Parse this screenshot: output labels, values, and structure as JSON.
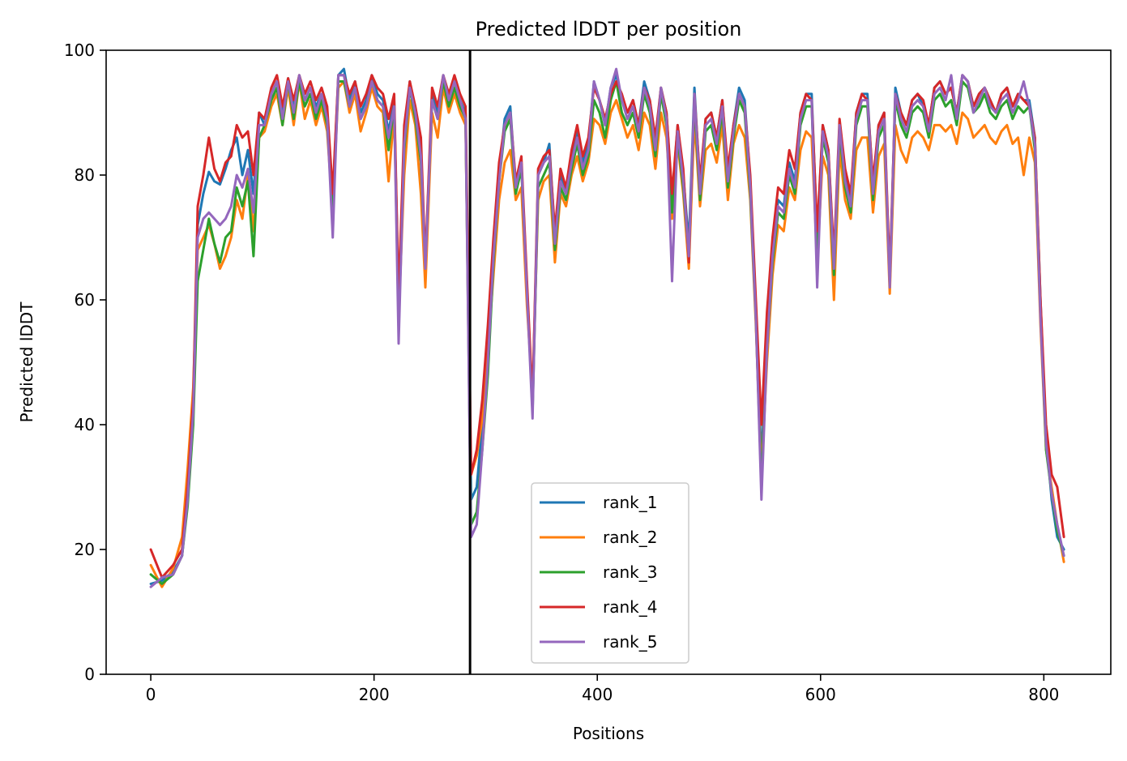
{
  "chart_data": {
    "type": "line",
    "title": "Predicted lDDT per position",
    "xlabel": "Positions",
    "ylabel": "Predicted lDDT",
    "xlim": [
      -40,
      860
    ],
    "ylim": [
      0,
      100
    ],
    "xticks": [
      0,
      200,
      400,
      600,
      800
    ],
    "yticks": [
      0,
      20,
      40,
      60,
      80,
      100
    ],
    "grid": false,
    "legend_position": "lower-center",
    "chain_break": 286,
    "breakpoints": [
      0,
      10,
      20,
      28,
      33,
      38,
      42,
      47,
      52,
      57,
      62,
      67,
      72,
      77,
      82,
      87,
      92,
      97,
      102,
      108,
      113,
      118,
      123,
      128,
      133,
      138,
      143,
      148,
      153,
      158,
      163,
      168,
      173,
      178,
      183,
      188,
      193,
      198,
      203,
      208,
      213,
      218,
      222,
      227,
      232,
      237,
      242,
      246,
      252,
      257,
      262,
      267,
      272,
      277,
      282,
      286,
      287,
      292,
      297,
      302,
      307,
      312,
      317,
      322,
      327,
      332,
      337,
      342,
      347,
      352,
      357,
      362,
      367,
      372,
      377,
      382,
      387,
      392,
      397,
      402,
      407,
      412,
      417,
      422,
      427,
      432,
      437,
      442,
      447,
      452,
      457,
      462,
      467,
      472,
      477,
      482,
      487,
      492,
      497,
      502,
      507,
      512,
      517,
      522,
      527,
      532,
      537,
      542,
      547,
      552,
      557,
      562,
      567,
      572,
      577,
      582,
      587,
      592,
      597,
      602,
      607,
      612,
      617,
      622,
      627,
      632,
      637,
      642,
      647,
      652,
      657,
      662,
      667,
      672,
      677,
      682,
      687,
      692,
      697,
      702,
      707,
      712,
      717,
      722,
      727,
      732,
      737,
      742,
      747,
      752,
      757,
      762,
      767,
      772,
      777,
      782,
      787,
      792,
      797,
      802,
      807,
      812,
      818
    ],
    "series": [
      {
        "name": "rank_1",
        "color": "#1f77b4",
        "values": [
          14.5,
          15,
          16.5,
          19,
          28,
          42,
          72,
          77,
          80.5,
          79,
          78.5,
          81,
          84,
          86,
          80,
          84,
          77,
          90,
          88,
          93,
          95,
          90,
          95.5,
          91,
          96,
          92,
          94,
          91,
          93,
          90,
          76,
          96,
          97,
          92,
          95,
          90,
          92,
          96,
          93,
          92,
          87,
          92,
          58,
          86,
          95,
          90,
          84,
          64,
          93,
          90,
          96,
          92,
          95,
          92,
          90,
          40,
          28,
          30,
          40,
          54,
          68,
          80,
          89,
          91,
          78,
          82,
          62,
          43,
          80,
          82,
          85,
          70,
          80,
          77,
          83,
          87,
          82,
          85,
          95,
          92,
          88,
          94,
          96,
          92,
          90,
          92,
          88,
          95,
          92,
          85,
          94,
          90,
          76,
          88,
          80,
          69,
          94,
          78,
          89,
          90,
          86,
          92,
          80,
          88,
          94,
          92,
          79,
          58,
          34,
          54,
          68,
          76,
          75,
          82,
          79,
          90,
          93,
          93,
          70,
          88,
          84,
          66,
          88,
          80,
          76,
          90,
          93,
          93,
          78,
          88,
          90,
          62,
          94,
          90,
          88,
          92,
          93,
          91,
          88,
          94,
          95,
          93,
          94,
          90,
          96,
          95,
          91,
          93,
          94,
          92,
          90,
          93,
          94,
          91,
          93,
          92,
          92,
          86,
          60,
          38,
          28,
          22,
          20
        ],
        "_": ""
      },
      {
        "name": "rank_2",
        "color": "#ff7f0e",
        "values": [
          17.5,
          14,
          17,
          22,
          33,
          46,
          68,
          70,
          72,
          69,
          65,
          67,
          70,
          76,
          73,
          80,
          71,
          86,
          87,
          91,
          93,
          88,
          94,
          88,
          95,
          89,
          92,
          88,
          91,
          87,
          74,
          94,
          95,
          90,
          93,
          87,
          90,
          94,
          91,
          90,
          79,
          90,
          57,
          80,
          92,
          88,
          77,
          62,
          90,
          86,
          94,
          90,
          93,
          90,
          88,
          38,
          32,
          35,
          41,
          52,
          64,
          76,
          82,
          84,
          76,
          78,
          59,
          45,
          76,
          79,
          80,
          66,
          77,
          75,
          80,
          83,
          79,
          82,
          89,
          88,
          85,
          90,
          92,
          89,
          86,
          88,
          84,
          90,
          88,
          81,
          90,
          86,
          73,
          85,
          77,
          65,
          89,
          75,
          84,
          85,
          82,
          88,
          76,
          85,
          88,
          86,
          76,
          56,
          32,
          50,
          64,
          72,
          71,
          78,
          76,
          84,
          87,
          86,
          66,
          83,
          80,
          60,
          84,
          76,
          73,
          84,
          86,
          86,
          74,
          83,
          85,
          61,
          88,
          84,
          82,
          86,
          87,
          86,
          84,
          88,
          88,
          87,
          88,
          85,
          90,
          89,
          86,
          87,
          88,
          86,
          85,
          87,
          88,
          85,
          86,
          80,
          86,
          82,
          56,
          36,
          30,
          24,
          18
        ],
        "_": ""
      },
      {
        "name": "rank_3",
        "color": "#2ca02c",
        "values": [
          16,
          14.5,
          16,
          19,
          27,
          40,
          63,
          68,
          73,
          69,
          66,
          70,
          71,
          78,
          75,
          79,
          67,
          86,
          88,
          92,
          94,
          88,
          95,
          89,
          95,
          91,
          93,
          89,
          92,
          88,
          74,
          95,
          95,
          91,
          94,
          89,
          91,
          95,
          92,
          91,
          84,
          91,
          60,
          84,
          94,
          89,
          82,
          66,
          92,
          89,
          95,
          91,
          94,
          91,
          89,
          34,
          24,
          26,
          36,
          48,
          66,
          79,
          87,
          89,
          77,
          81,
          62,
          42,
          78,
          80,
          82,
          68,
          78,
          76,
          81,
          85,
          80,
          83,
          92,
          90,
          86,
          92,
          95,
          90,
          88,
          90,
          86,
          93,
          90,
          83,
          93,
          88,
          74,
          86,
          78,
          67,
          92,
          76,
          87,
          88,
          84,
          90,
          78,
          86,
          92,
          90,
          77,
          57,
          30,
          52,
          66,
          74,
          73,
          80,
          77,
          88,
          91,
          91,
          68,
          86,
          82,
          64,
          87,
          78,
          74,
          88,
          91,
          91,
          76,
          86,
          88,
          63,
          92,
          88,
          86,
          90,
          91,
          90,
          86,
          92,
          93,
          91,
          92,
          88,
          95,
          94,
          90,
          91,
          93,
          90,
          89,
          91,
          92,
          89,
          91,
          90,
          91,
          84,
          58,
          36,
          29,
          23,
          19
        ],
        "_": ""
      },
      {
        "name": "rank_4",
        "color": "#d62728",
        "values": [
          20,
          15.5,
          17.5,
          20,
          30,
          44,
          75,
          80,
          86,
          81,
          79,
          82,
          83,
          88,
          86,
          87,
          80,
          90,
          89,
          94,
          96,
          91,
          95.5,
          92,
          96,
          93,
          95,
          92,
          94,
          91,
          77,
          96,
          96,
          93,
          95,
          91,
          93,
          96,
          94,
          93,
          89,
          93,
          60,
          88,
          95,
          91,
          86,
          66,
          94,
          91,
          96,
          93,
          96,
          93,
          91,
          44,
          32,
          36,
          44,
          56,
          70,
          82,
          88,
          90,
          79,
          83,
          63,
          44,
          81,
          83,
          84,
          71,
          81,
          78,
          84,
          88,
          83,
          86,
          94,
          92,
          89,
          93,
          95,
          93,
          90,
          92,
          88,
          94,
          92,
          86,
          94,
          90,
          77,
          88,
          81,
          66,
          93,
          79,
          89,
          90,
          86,
          92,
          81,
          88,
          93,
          91,
          80,
          60,
          40,
          58,
          70,
          78,
          77,
          84,
          81,
          90,
          93,
          92,
          71,
          88,
          84,
          67,
          89,
          81,
          77,
          90,
          93,
          92,
          79,
          88,
          90,
          64,
          93,
          90,
          88,
          92,
          93,
          92,
          88,
          94,
          95,
          93,
          94,
          90,
          96,
          95,
          91,
          93,
          94,
          92,
          90,
          93,
          94,
          91,
          93,
          92,
          91,
          86,
          60,
          40,
          32,
          30,
          22
        ],
        "_": ""
      },
      {
        "name": "rank_5",
        "color": "#9467bd",
        "values": [
          14,
          15.5,
          16,
          19,
          28,
          42,
          70,
          73,
          74,
          73,
          72,
          73,
          75,
          80,
          78,
          81,
          74,
          88,
          88,
          93,
          95,
          89,
          95,
          90,
          96,
          92,
          94,
          90,
          93,
          89,
          70,
          96,
          96,
          91,
          94,
          89,
          91,
          95,
          92,
          91,
          86,
          91,
          53,
          85,
          94,
          90,
          83,
          65,
          92,
          89,
          96,
          92,
          95,
          92,
          89,
          32,
          22,
          24,
          36,
          50,
          67,
          79,
          88,
          90,
          78,
          82,
          61,
          41,
          80,
          82,
          83,
          69,
          79,
          77,
          82,
          86,
          81,
          84,
          95,
          92,
          88,
          94,
          97,
          92,
          89,
          91,
          87,
          94,
          91,
          84,
          94,
          89,
          63,
          87,
          79,
          67,
          93,
          77,
          88,
          89,
          85,
          91,
          79,
          87,
          93,
          91,
          78,
          57,
          28,
          52,
          67,
          75,
          74,
          81,
          78,
          89,
          92,
          92,
          62,
          87,
          83,
          65,
          88,
          79,
          75,
          89,
          92,
          92,
          77,
          87,
          89,
          62,
          93,
          89,
          87,
          91,
          92,
          91,
          87,
          93,
          94,
          92,
          96,
          89,
          96,
          95,
          90,
          92,
          94,
          91,
          90,
          92,
          93,
          90,
          92,
          95,
          91,
          85,
          57,
          37,
          29,
          24,
          19
        ],
        "_": ""
      }
    ]
  }
}
